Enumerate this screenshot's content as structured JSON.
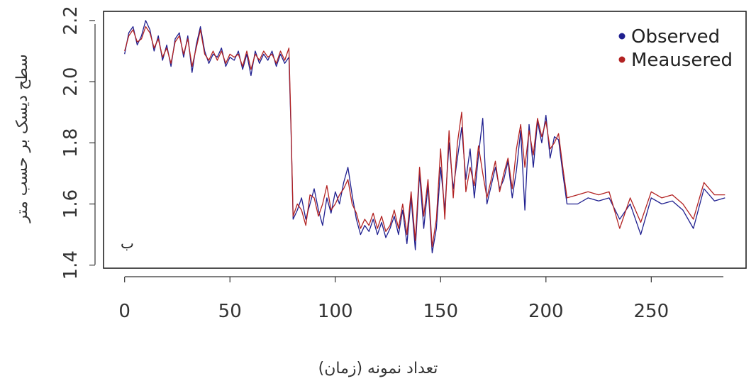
{
  "chart_data": {
    "type": "line",
    "title": "",
    "xlabel": "تعداد نمونه (زمان)",
    "ylabel": "سطح دیسک بر حسب متر",
    "panel_label": "ب",
    "xlim": [
      -10,
      295
    ],
    "ylim": [
      1.39,
      2.23
    ],
    "x_ticks": [
      0,
      50,
      100,
      150,
      200,
      250
    ],
    "y_ticks": [
      1.4,
      1.6,
      1.8,
      2.0,
      2.2
    ],
    "x_tick_labels": [
      "0",
      "50",
      "100",
      "150",
      "200",
      "250"
    ],
    "y_tick_labels": [
      "1.4",
      "1.6",
      "1.8",
      "2.0",
      "2.2"
    ],
    "legend_position": "top-right",
    "grid": false,
    "x": [
      0,
      2,
      4,
      6,
      8,
      10,
      12,
      14,
      16,
      18,
      20,
      22,
      24,
      26,
      28,
      30,
      32,
      34,
      36,
      38,
      40,
      42,
      44,
      46,
      48,
      50,
      52,
      54,
      56,
      58,
      60,
      62,
      64,
      66,
      68,
      70,
      72,
      74,
      76,
      78,
      79,
      80,
      82,
      84,
      86,
      88,
      90,
      92,
      94,
      96,
      98,
      100,
      102,
      104,
      106,
      108,
      110,
      112,
      114,
      116,
      118,
      120,
      122,
      124,
      126,
      128,
      130,
      132,
      134,
      136,
      138,
      140,
      142,
      144,
      146,
      148,
      150,
      152,
      154,
      156,
      158,
      160,
      162,
      164,
      166,
      168,
      170,
      172,
      174,
      176,
      178,
      180,
      182,
      184,
      186,
      188,
      190,
      192,
      194,
      196,
      198,
      200,
      202,
      204,
      206,
      208,
      210,
      215,
      220,
      225,
      230,
      235,
      240,
      245,
      250,
      255,
      260,
      265,
      270,
      275,
      280,
      285
    ],
    "series": [
      {
        "name": "Observed",
        "color": "#1f1f8f",
        "values": [
          2.09,
          2.16,
          2.18,
          2.12,
          2.15,
          2.2,
          2.17,
          2.1,
          2.15,
          2.07,
          2.12,
          2.05,
          2.14,
          2.16,
          2.08,
          2.15,
          2.03,
          2.12,
          2.18,
          2.1,
          2.06,
          2.09,
          2.08,
          2.11,
          2.05,
          2.08,
          2.07,
          2.1,
          2.04,
          2.09,
          2.02,
          2.1,
          2.06,
          2.09,
          2.07,
          2.1,
          2.05,
          2.09,
          2.06,
          2.08,
          1.84,
          1.55,
          1.58,
          1.62,
          1.55,
          1.6,
          1.65,
          1.58,
          1.53,
          1.62,
          1.57,
          1.64,
          1.6,
          1.67,
          1.72,
          1.63,
          1.55,
          1.5,
          1.53,
          1.51,
          1.55,
          1.5,
          1.54,
          1.49,
          1.52,
          1.56,
          1.5,
          1.58,
          1.47,
          1.62,
          1.45,
          1.7,
          1.52,
          1.66,
          1.44,
          1.52,
          1.72,
          1.58,
          1.8,
          1.65,
          1.75,
          1.85,
          1.68,
          1.78,
          1.62,
          1.76,
          1.88,
          1.6,
          1.66,
          1.72,
          1.65,
          1.68,
          1.74,
          1.62,
          1.71,
          1.84,
          1.58,
          1.86,
          1.72,
          1.87,
          1.8,
          1.89,
          1.75,
          1.82,
          1.81,
          1.7,
          1.6,
          1.6,
          1.62,
          1.61,
          1.62,
          1.55,
          1.6,
          1.5,
          1.62,
          1.6,
          1.61,
          1.58,
          1.52,
          1.65,
          1.61,
          1.62
        ]
      },
      {
        "name": "Meausered",
        "color": "#b22222",
        "values": [
          2.1,
          2.15,
          2.17,
          2.13,
          2.14,
          2.18,
          2.16,
          2.11,
          2.14,
          2.08,
          2.11,
          2.06,
          2.13,
          2.15,
          2.09,
          2.14,
          2.05,
          2.11,
          2.17,
          2.09,
          2.07,
          2.1,
          2.07,
          2.1,
          2.06,
          2.09,
          2.08,
          2.09,
          2.05,
          2.1,
          2.04,
          2.09,
          2.07,
          2.1,
          2.08,
          2.09,
          2.06,
          2.1,
          2.07,
          2.11,
          1.85,
          1.56,
          1.6,
          1.58,
          1.53,
          1.63,
          1.62,
          1.56,
          1.6,
          1.66,
          1.58,
          1.6,
          1.63,
          1.65,
          1.68,
          1.6,
          1.57,
          1.52,
          1.55,
          1.53,
          1.57,
          1.52,
          1.56,
          1.51,
          1.53,
          1.58,
          1.52,
          1.6,
          1.5,
          1.64,
          1.48,
          1.72,
          1.56,
          1.68,
          1.46,
          1.55,
          1.78,
          1.55,
          1.84,
          1.62,
          1.8,
          1.9,
          1.64,
          1.72,
          1.66,
          1.79,
          1.7,
          1.62,
          1.68,
          1.74,
          1.64,
          1.7,
          1.75,
          1.65,
          1.78,
          1.86,
          1.72,
          1.84,
          1.76,
          1.88,
          1.82,
          1.87,
          1.78,
          1.8,
          1.83,
          1.72,
          1.62,
          1.63,
          1.64,
          1.63,
          1.64,
          1.52,
          1.62,
          1.54,
          1.64,
          1.62,
          1.63,
          1.6,
          1.55,
          1.67,
          1.63,
          1.63
        ]
      }
    ]
  }
}
